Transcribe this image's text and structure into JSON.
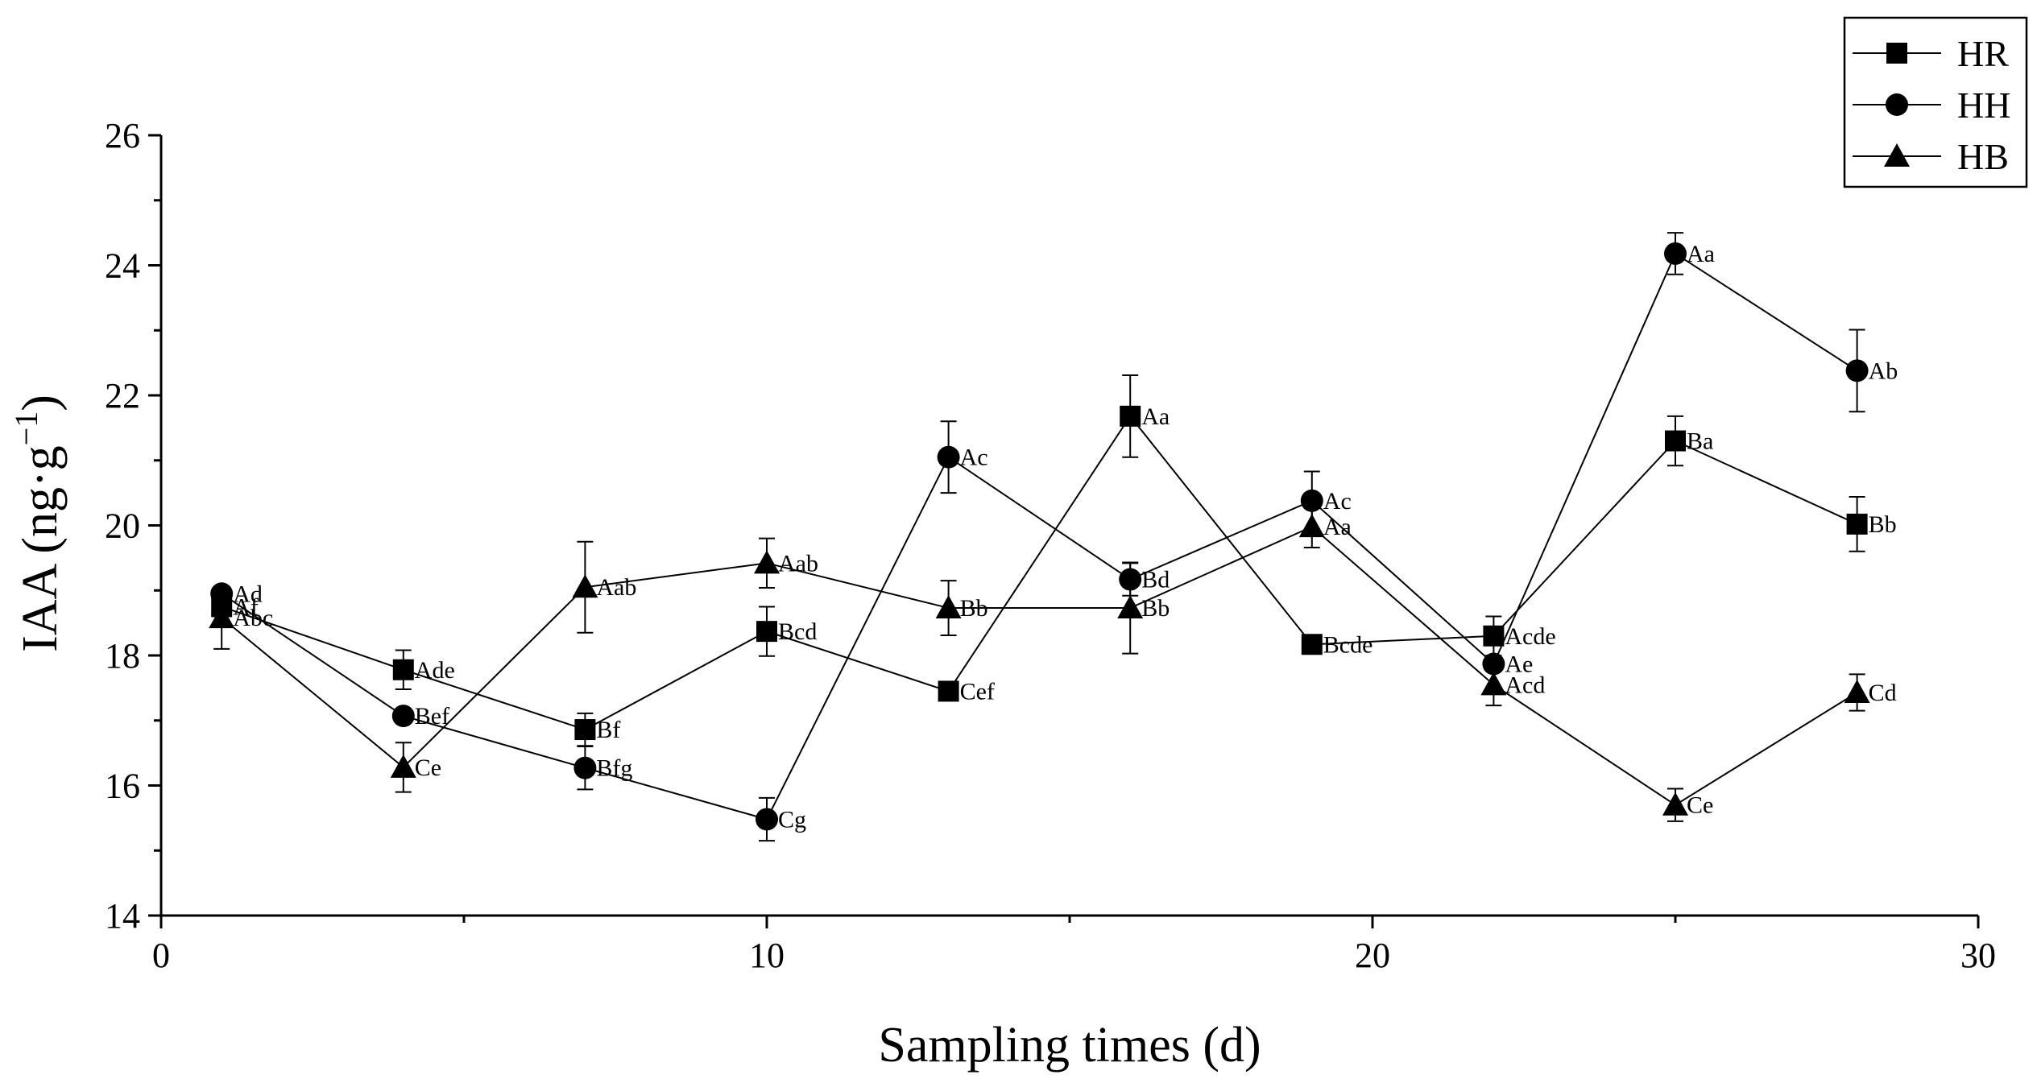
{
  "chart_data": {
    "type": "line",
    "title": "",
    "xlabel": "Sampling times (d)",
    "ylabel_main": "IAA (ng·g",
    "ylabel_sup": "−1",
    "ylabel_close": ")",
    "xlim": [
      0,
      30
    ],
    "ylim": [
      14,
      26
    ],
    "x_major_ticks": [
      0,
      10,
      20,
      30
    ],
    "x_minor_ticks": [
      5,
      15,
      25
    ],
    "y_major_ticks": [
      14,
      16,
      18,
      20,
      22,
      24,
      26
    ],
    "y_minor_ticks": [
      15,
      17,
      19,
      21,
      23,
      25
    ],
    "x_tick_labels": [
      "0",
      "10",
      "20",
      "30"
    ],
    "y_tick_labels": [
      "14",
      "16",
      "18",
      "20",
      "22",
      "24",
      "26"
    ],
    "grid": false,
    "legend_position": "top-right",
    "x": [
      1,
      4,
      7,
      10,
      13,
      16,
      19,
      22,
      25,
      28
    ],
    "series": [
      {
        "name": "HR",
        "marker": "square",
        "values": [
          18.75,
          17.78,
          16.86,
          18.37,
          17.45,
          21.68,
          18.17,
          18.3,
          21.3,
          20.02
        ],
        "errors": [
          0.25,
          0.3,
          0.25,
          0.38,
          0.0,
          0.63,
          0.0,
          0.3,
          0.38,
          0.42
        ],
        "labels": [
          "Af",
          "Ade",
          "Bf",
          "Bcd",
          "Cef",
          "Aa",
          "Bcde",
          "Acde",
          "Ba",
          "Bb"
        ]
      },
      {
        "name": "HH",
        "marker": "circle",
        "values": [
          18.95,
          17.07,
          16.27,
          15.48,
          21.05,
          19.17,
          20.38,
          17.87,
          24.18,
          22.38
        ],
        "errors": [
          0.0,
          0.0,
          0.33,
          0.33,
          0.55,
          0.25,
          0.45,
          0.0,
          0.32,
          0.63
        ],
        "labels": [
          "Ad",
          "Bef",
          "Bfg",
          "Cg",
          "Ac",
          "Bd",
          "Ac",
          "Ae",
          "Aa",
          "Ab"
        ]
      },
      {
        "name": "HB",
        "marker": "triangle",
        "values": [
          18.58,
          16.28,
          19.05,
          19.42,
          18.73,
          18.73,
          19.98,
          17.55,
          15.7,
          17.43
        ],
        "errors": [
          0.48,
          0.38,
          0.7,
          0.38,
          0.42,
          0.7,
          0.32,
          0.32,
          0.25,
          0.28
        ],
        "labels": [
          "Abc",
          "Ce",
          "Aab",
          "Aab",
          "Bb",
          "Bb",
          "Aa",
          "Acd",
          "Ce",
          "Cd"
        ]
      }
    ]
  }
}
